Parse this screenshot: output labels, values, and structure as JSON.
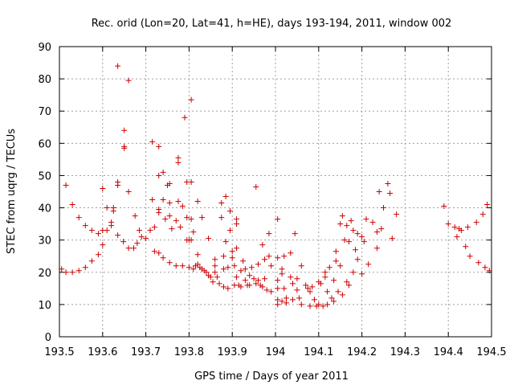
{
  "chart_data": {
    "type": "scatter",
    "title": "Rec. orid (Lon=20, Lat=41, h=HE), days 193-194, 2011, window 002",
    "xlabel": "GPS time / Days of year 2011",
    "ylabel": "STEC from uqrg / TECUs",
    "xlim": [
      193.5,
      194.5
    ],
    "ylim": [
      0,
      90
    ],
    "xticks": [
      193.5,
      193.6,
      193.7,
      193.8,
      193.9,
      194.0,
      194.1,
      194.2,
      194.3,
      194.4,
      194.5
    ],
    "xtick_labels": [
      "193.5",
      "193.6",
      "193.7",
      "193.8",
      "193.9",
      "194",
      "194.1",
      "194.2",
      "194.3",
      "194.4",
      "194.5"
    ],
    "yticks": [
      0,
      10,
      20,
      30,
      40,
      50,
      60,
      70,
      80,
      90
    ],
    "ytick_labels": [
      "0",
      "10",
      "20",
      "30",
      "40",
      "50",
      "60",
      "70",
      "80",
      "90"
    ],
    "grid": true,
    "marker": "+",
    "color": "#cc0000",
    "points": [
      [
        193.505,
        21.0
      ],
      [
        193.515,
        20.0
      ],
      [
        193.53,
        20.0
      ],
      [
        193.545,
        20.5
      ],
      [
        193.56,
        21.5
      ],
      [
        193.575,
        23.5
      ],
      [
        193.59,
        25.5
      ],
      [
        193.6,
        28.5
      ],
      [
        193.515,
        47.0
      ],
      [
        193.53,
        41.0
      ],
      [
        193.545,
        37.0
      ],
      [
        193.56,
        34.5
      ],
      [
        193.575,
        33.0
      ],
      [
        193.59,
        32.0
      ],
      [
        193.6,
        33.0
      ],
      [
        193.61,
        33.0
      ],
      [
        193.6,
        46.0
      ],
      [
        193.61,
        40.0
      ],
      [
        193.62,
        35.5
      ],
      [
        193.625,
        40.0
      ],
      [
        193.625,
        39.0
      ],
      [
        193.62,
        34.5
      ],
      [
        193.635,
        84.0
      ],
      [
        193.635,
        48.0
      ],
      [
        193.635,
        47.0
      ],
      [
        193.65,
        64.0
      ],
      [
        193.65,
        59.0
      ],
      [
        193.65,
        58.5
      ],
      [
        193.66,
        79.5
      ],
      [
        193.66,
        45.0
      ],
      [
        193.635,
        31.5
      ],
      [
        193.648,
        29.5
      ],
      [
        193.66,
        27.5
      ],
      [
        193.672,
        27.5
      ],
      [
        193.68,
        29.0
      ],
      [
        193.69,
        31.0
      ],
      [
        193.675,
        37.5
      ],
      [
        193.685,
        33.0
      ],
      [
        193.7,
        30.5
      ],
      [
        193.71,
        33.0
      ],
      [
        193.72,
        34.0
      ],
      [
        193.715,
        42.5
      ],
      [
        193.715,
        60.5
      ],
      [
        193.73,
        59.0
      ],
      [
        193.73,
        39.5
      ],
      [
        193.73,
        38.5
      ],
      [
        193.73,
        50.0
      ],
      [
        193.74,
        51.0
      ],
      [
        193.74,
        42.5
      ],
      [
        193.745,
        36.5
      ],
      [
        193.75,
        47.0
      ],
      [
        193.755,
        47.5
      ],
      [
        193.755,
        41.5
      ],
      [
        193.755,
        37.5
      ],
      [
        193.76,
        33.5
      ],
      [
        193.77,
        36.0
      ],
      [
        193.775,
        42.0
      ],
      [
        193.775,
        55.5
      ],
      [
        193.775,
        54.0
      ],
      [
        193.78,
        34.0
      ],
      [
        193.785,
        40.5
      ],
      [
        193.79,
        68.0
      ],
      [
        193.795,
        37.0
      ],
      [
        193.795,
        30.0
      ],
      [
        193.805,
        73.5
      ],
      [
        193.805,
        48.0
      ],
      [
        193.795,
        48.0
      ],
      [
        193.805,
        36.5
      ],
      [
        193.805,
        30.0
      ],
      [
        193.81,
        32.5
      ],
      [
        193.8,
        30.0
      ],
      [
        193.82,
        42.0
      ],
      [
        193.83,
        37.0
      ],
      [
        193.72,
        26.5
      ],
      [
        193.73,
        26.0
      ],
      [
        193.74,
        24.5
      ],
      [
        193.755,
        23.0
      ],
      [
        193.77,
        22.0
      ],
      [
        193.785,
        22.0
      ],
      [
        193.8,
        21.5
      ],
      [
        193.81,
        21.0
      ],
      [
        193.815,
        22.0
      ],
      [
        193.82,
        25.5
      ],
      [
        193.82,
        22.5
      ],
      [
        193.825,
        21.5
      ],
      [
        193.83,
        21.0
      ],
      [
        193.835,
        20.5
      ],
      [
        193.84,
        20.0
      ],
      [
        193.845,
        19.0
      ],
      [
        193.845,
        30.5
      ],
      [
        193.85,
        18.5
      ],
      [
        193.855,
        17.0
      ],
      [
        193.86,
        22.0
      ],
      [
        193.86,
        24.0
      ],
      [
        193.86,
        20.0
      ],
      [
        193.865,
        18.5
      ],
      [
        193.87,
        16.5
      ],
      [
        193.875,
        37.0
      ],
      [
        193.875,
        41.5
      ],
      [
        193.88,
        21.0
      ],
      [
        193.88,
        25.0
      ],
      [
        193.88,
        15.5
      ],
      [
        193.885,
        43.5
      ],
      [
        193.885,
        29.5
      ],
      [
        193.89,
        21.5
      ],
      [
        193.89,
        15.0
      ],
      [
        193.895,
        39.0
      ],
      [
        193.895,
        33.0
      ],
      [
        193.9,
        26.5
      ],
      [
        193.9,
        24.5
      ],
      [
        193.905,
        22.0
      ],
      [
        193.905,
        16.0
      ],
      [
        193.91,
        36.5
      ],
      [
        193.91,
        35.0
      ],
      [
        193.91,
        27.5
      ],
      [
        193.91,
        18.5
      ],
      [
        193.915,
        16.0
      ],
      [
        193.92,
        20.5
      ],
      [
        193.92,
        15.5
      ],
      [
        193.925,
        23.5
      ],
      [
        193.93,
        21.0
      ],
      [
        193.93,
        17.5
      ],
      [
        193.935,
        16.0
      ],
      [
        193.94,
        19.0
      ],
      [
        193.94,
        16.0
      ],
      [
        193.945,
        21.5
      ],
      [
        193.95,
        18.0
      ],
      [
        193.955,
        16.5
      ],
      [
        193.955,
        46.5
      ],
      [
        193.96,
        22.5
      ],
      [
        193.96,
        17.5
      ],
      [
        193.965,
        16.0
      ],
      [
        193.97,
        28.5
      ],
      [
        193.97,
        15.5
      ],
      [
        193.975,
        24.0
      ],
      [
        193.975,
        18.0
      ],
      [
        193.98,
        14.5
      ],
      [
        193.985,
        32.0
      ],
      [
        193.985,
        25.0
      ],
      [
        193.99,
        22.0
      ],
      [
        193.99,
        14.0
      ],
      [
        194.005,
        36.5
      ],
      [
        194.005,
        24.5
      ],
      [
        194.005,
        17.5
      ],
      [
        194.005,
        15.0
      ],
      [
        194.005,
        11.5
      ],
      [
        194.005,
        10.0
      ],
      [
        194.015,
        21.0
      ],
      [
        194.015,
        19.5
      ],
      [
        194.015,
        11.0
      ],
      [
        194.02,
        25.0
      ],
      [
        194.02,
        15.0
      ],
      [
        194.025,
        12.0
      ],
      [
        194.025,
        10.5
      ],
      [
        194.035,
        26.0
      ],
      [
        194.035,
        18.5
      ],
      [
        194.04,
        16.5
      ],
      [
        194.04,
        11.5
      ],
      [
        194.045,
        32.0
      ],
      [
        194.05,
        18.0
      ],
      [
        194.05,
        14.5
      ],
      [
        194.055,
        12.0
      ],
      [
        194.06,
        22.0
      ],
      [
        194.06,
        10.0
      ],
      [
        194.07,
        16.0
      ],
      [
        194.075,
        15.0
      ],
      [
        194.08,
        14.0
      ],
      [
        194.08,
        9.5
      ],
      [
        194.085,
        15.5
      ],
      [
        194.09,
        11.5
      ],
      [
        194.095,
        9.5
      ],
      [
        194.1,
        17.0
      ],
      [
        194.1,
        10.0
      ],
      [
        194.105,
        16.5
      ],
      [
        194.11,
        9.5
      ],
      [
        194.115,
        20.0
      ],
      [
        194.115,
        18.5
      ],
      [
        194.12,
        14.0
      ],
      [
        194.12,
        10.0
      ],
      [
        194.125,
        21.5
      ],
      [
        194.13,
        12.0
      ],
      [
        194.135,
        17.5
      ],
      [
        194.135,
        11.0
      ],
      [
        194.14,
        23.5
      ],
      [
        194.14,
        26.5
      ],
      [
        194.145,
        14.0
      ],
      [
        194.15,
        35.0
      ],
      [
        194.15,
        22.0
      ],
      [
        194.155,
        13.0
      ],
      [
        194.155,
        37.5
      ],
      [
        194.16,
        30.0
      ],
      [
        194.165,
        17.0
      ],
      [
        194.165,
        34.5
      ],
      [
        194.17,
        29.5
      ],
      [
        194.17,
        16.0
      ],
      [
        194.175,
        36.0
      ],
      [
        194.18,
        33.0
      ],
      [
        194.18,
        20.0
      ],
      [
        194.185,
        27.0
      ],
      [
        194.19,
        24.0
      ],
      [
        194.19,
        32.0
      ],
      [
        194.2,
        31.0
      ],
      [
        194.2,
        19.5
      ],
      [
        194.205,
        29.5
      ],
      [
        194.21,
        36.5
      ],
      [
        194.215,
        22.5
      ],
      [
        194.225,
        35.5
      ],
      [
        194.235,
        27.5
      ],
      [
        194.235,
        32.5
      ],
      [
        194.24,
        45.0
      ],
      [
        194.245,
        33.5
      ],
      [
        194.25,
        40.0
      ],
      [
        194.26,
        47.5
      ],
      [
        194.265,
        44.5
      ],
      [
        194.27,
        30.5
      ],
      [
        194.28,
        38.0
      ],
      [
        194.39,
        40.5
      ],
      [
        194.4,
        35.0
      ],
      [
        194.415,
        34.0
      ],
      [
        194.42,
        31.0
      ],
      [
        194.425,
        33.5
      ],
      [
        194.43,
        33.0
      ],
      [
        194.44,
        28.0
      ],
      [
        194.445,
        34.0
      ],
      [
        194.45,
        25.0
      ],
      [
        194.465,
        35.5
      ],
      [
        194.47,
        23.0
      ],
      [
        194.48,
        38.0
      ],
      [
        194.485,
        21.5
      ],
      [
        194.49,
        41.0
      ],
      [
        194.495,
        20.5
      ]
    ]
  }
}
